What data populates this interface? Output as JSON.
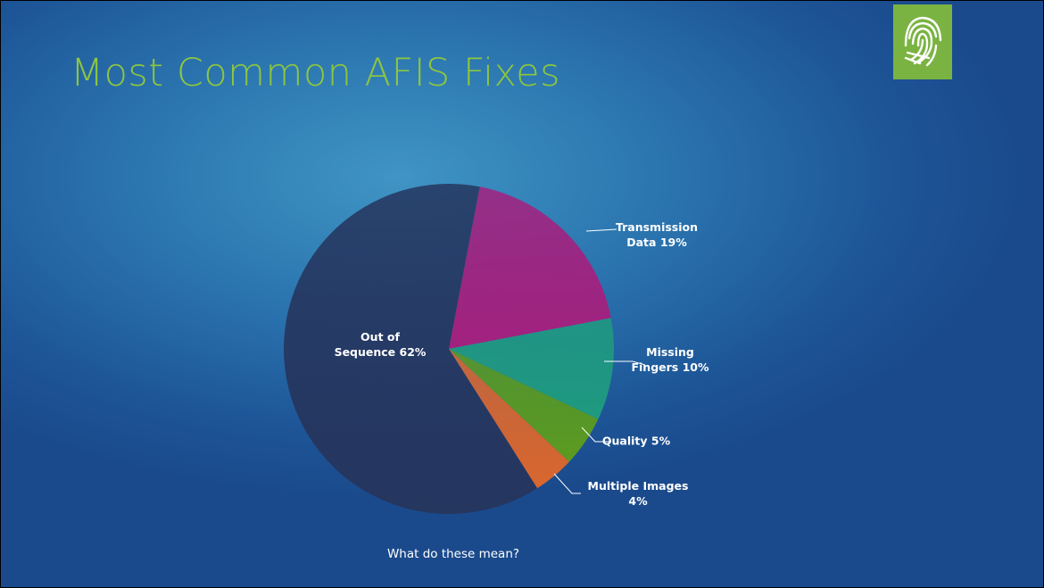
{
  "chart_data": {
    "type": "pie",
    "title": "Most Common AFIS Fixes",
    "annotation": "What do these mean?",
    "categories": [
      "Transmission Data",
      "Missing Fingers",
      "Quality",
      "Multiple Images",
      "Out of Sequence"
    ],
    "values": [
      19,
      10,
      5,
      4,
      62
    ],
    "value_labels": [
      "19%",
      "10%",
      "5%",
      "4%",
      "62%"
    ],
    "colors": [
      "#a3217f",
      "#1f9a80",
      "#5b9b20",
      "#d9672f",
      "#25365f"
    ]
  }
}
